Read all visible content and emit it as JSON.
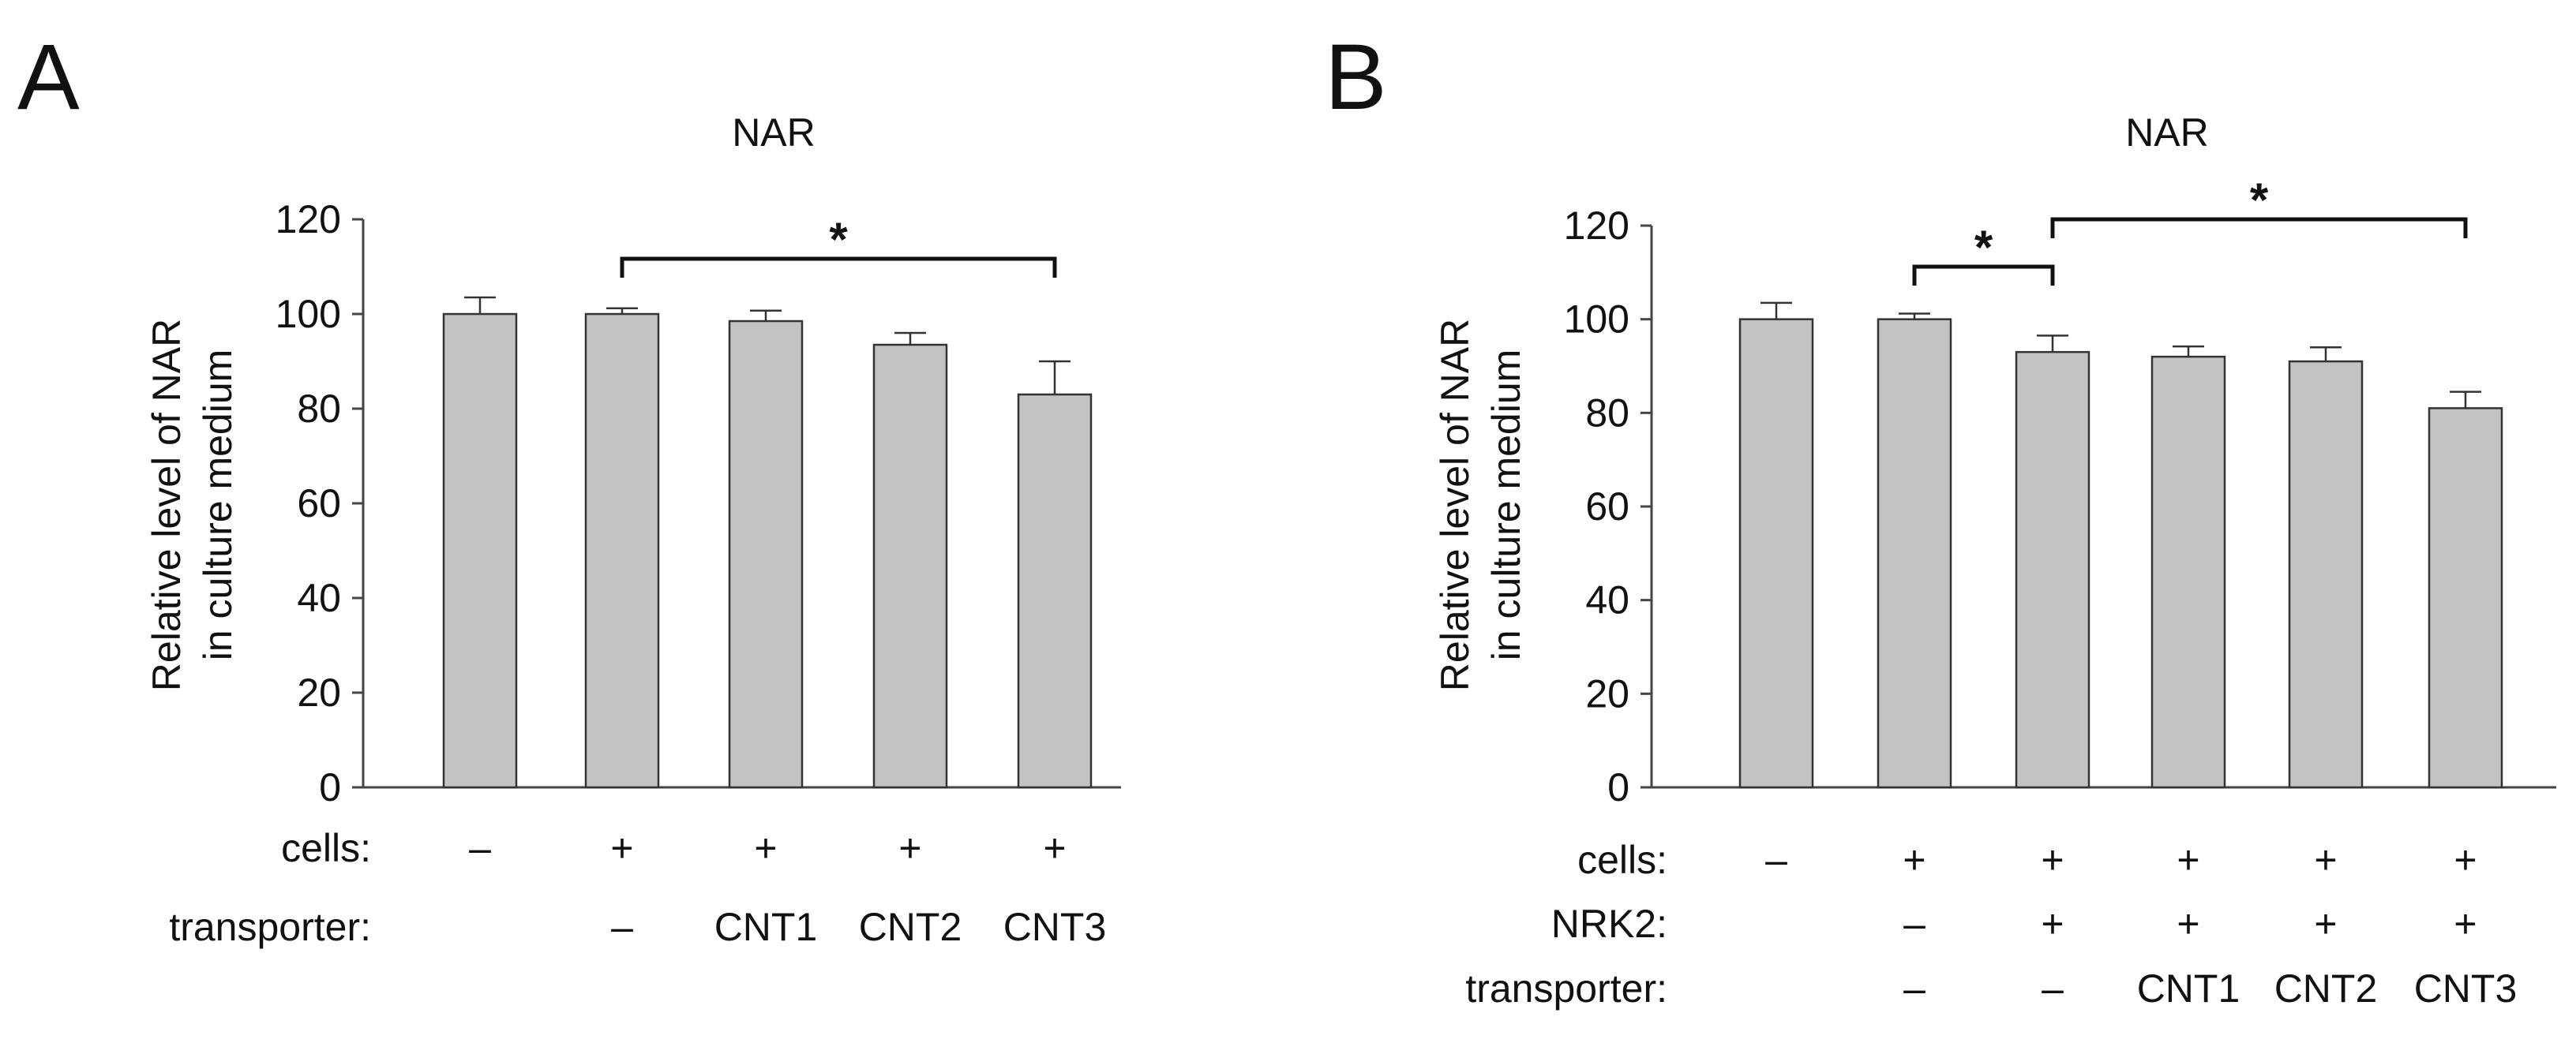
{
  "chart_data": [
    {
      "panel": "A",
      "type": "bar",
      "title": "NAR",
      "ylabel_line1": "Relative level of NAR",
      "ylabel_line2": "in culture medium",
      "ylim": [
        0,
        120
      ],
      "yticks": [
        0,
        20,
        40,
        60,
        80,
        100,
        120
      ],
      "values": [
        100,
        100,
        98.5,
        93.5,
        83
      ],
      "errors": [
        3.5,
        1.2,
        2.2,
        2.5,
        7
      ],
      "conditions": [
        {
          "label": "cells:",
          "values": [
            "–",
            "+",
            "+",
            "+",
            "+"
          ]
        },
        {
          "label": "transporter:",
          "values": [
            "",
            "–",
            "CNT1",
            "CNT2",
            "CNT3"
          ]
        }
      ],
      "significance": [
        {
          "from": 1,
          "to": 4,
          "label": "*"
        }
      ]
    },
    {
      "panel": "B",
      "type": "bar",
      "title": "NAR",
      "ylabel_line1": "Relative level of NAR",
      "ylabel_line2": "in culture medium",
      "ylim": [
        0,
        120
      ],
      "yticks": [
        0,
        20,
        40,
        60,
        80,
        100,
        120
      ],
      "values": [
        100,
        100,
        93,
        92,
        91,
        81
      ],
      "errors": [
        3.5,
        1.2,
        3.5,
        2.2,
        3,
        3.5
      ],
      "conditions": [
        {
          "label": "cells:",
          "values": [
            "–",
            "+",
            "+",
            "+",
            "+",
            "+"
          ]
        },
        {
          "label": "NRK2:",
          "values": [
            "",
            "–",
            "+",
            "+",
            "+",
            "+"
          ]
        },
        {
          "label": "transporter:",
          "values": [
            "",
            "–",
            "–",
            "CNT1",
            "CNT2",
            "CNT3"
          ]
        }
      ],
      "significance": [
        {
          "from": 1,
          "to": 2,
          "label": "*"
        },
        {
          "from": 2,
          "to": 5,
          "label": "*"
        }
      ]
    }
  ]
}
